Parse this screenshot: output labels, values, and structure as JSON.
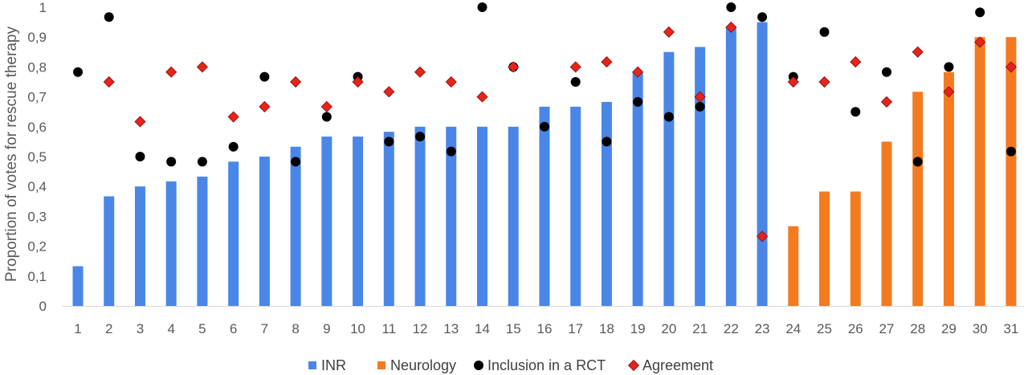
{
  "chart_data": {
    "type": "bar",
    "ylabel": "Proportion of votes for rescue therapy",
    "xlabel": "",
    "ylim": [
      0,
      1
    ],
    "yticks": [
      0,
      0.1,
      0.2,
      0.3,
      0.4,
      0.5,
      0.6,
      0.7,
      0.8,
      0.9,
      1
    ],
    "ytick_labels": [
      "0",
      "0,1",
      "0,2",
      "0,3",
      "0,4",
      "0,5",
      "0,6",
      "0,7",
      "0,8",
      "0,9",
      "1"
    ],
    "categories": [
      "1",
      "2",
      "3",
      "4",
      "5",
      "6",
      "7",
      "8",
      "9",
      "10",
      "11",
      "12",
      "13",
      "14",
      "15",
      "16",
      "17",
      "18",
      "19",
      "20",
      "21",
      "22",
      "23",
      "24",
      "25",
      "26",
      "27",
      "28",
      "29",
      "30",
      "31"
    ],
    "grid": false,
    "legend_position": "bottom",
    "series": [
      {
        "name": "INR",
        "kind": "bar",
        "color": "#4a86e8",
        "values": [
          0.133,
          0.367,
          0.4,
          0.417,
          0.433,
          0.483,
          0.5,
          0.533,
          0.567,
          0.567,
          0.583,
          0.6,
          0.6,
          0.6,
          0.6,
          0.667,
          0.667,
          0.683,
          0.783,
          0.85,
          0.867,
          0.933,
          0.95,
          null,
          null,
          null,
          null,
          null,
          null,
          null,
          null
        ]
      },
      {
        "name": "Neurology",
        "kind": "bar",
        "color": "#f47a20",
        "values": [
          null,
          null,
          null,
          null,
          null,
          null,
          null,
          null,
          null,
          null,
          null,
          null,
          null,
          null,
          null,
          null,
          null,
          null,
          null,
          null,
          null,
          null,
          null,
          0.267,
          0.383,
          0.383,
          0.55,
          0.717,
          0.783,
          0.9,
          0.9
        ]
      },
      {
        "name": "Inclusion in a RCT",
        "kind": "marker-circle",
        "color": "#000000",
        "values": [
          0.783,
          0.967,
          0.5,
          0.483,
          0.483,
          0.533,
          0.767,
          0.483,
          0.633,
          0.767,
          0.55,
          0.567,
          0.517,
          1.0,
          0.8,
          0.6,
          0.75,
          0.55,
          0.683,
          0.633,
          0.667,
          1.0,
          0.967,
          0.767,
          0.917,
          0.65,
          0.783,
          0.483,
          0.8,
          0.983,
          0.517
        ]
      },
      {
        "name": "Agreement",
        "kind": "marker-diamond",
        "color": "#e8231a",
        "values": [
          null,
          0.75,
          0.617,
          0.783,
          0.8,
          0.633,
          0.667,
          0.75,
          0.667,
          0.75,
          0.717,
          0.783,
          0.75,
          0.7,
          0.8,
          null,
          0.8,
          0.817,
          0.783,
          0.917,
          0.7,
          0.933,
          0.233,
          0.75,
          0.75,
          0.817,
          0.683,
          0.85,
          0.717,
          0.883,
          0.8
        ]
      }
    ]
  }
}
